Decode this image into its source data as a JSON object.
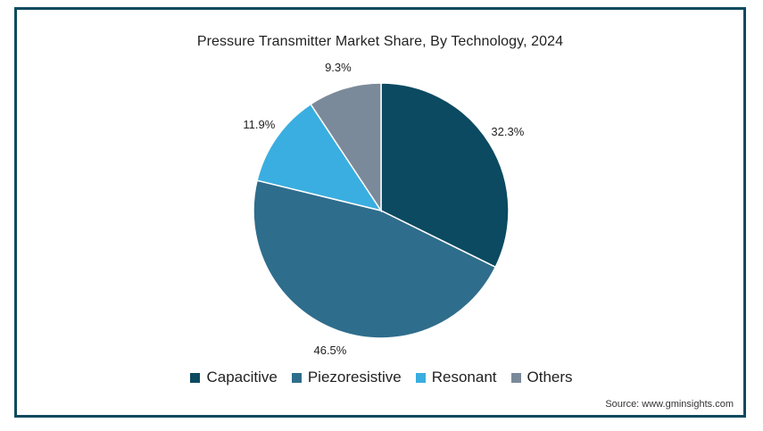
{
  "chart_data": {
    "type": "pie",
    "title": "Pressure Transmitter Market Share, By Technology, 2024",
    "categories": [
      "Capacitive",
      "Piezoresistive",
      "Resonant",
      "Others"
    ],
    "values": [
      32.3,
      46.5,
      11.9,
      9.3
    ],
    "value_labels": [
      "32.3%",
      "46.5%",
      "11.9%",
      "9.3%"
    ],
    "colors": [
      "#0b4a61",
      "#2f6d8c",
      "#3aaee0",
      "#7a8a9a"
    ],
    "legend_placement": "bottom",
    "start_angle_deg": 0,
    "direction": "clockwise"
  },
  "source": "Source: www.gminsights.com"
}
